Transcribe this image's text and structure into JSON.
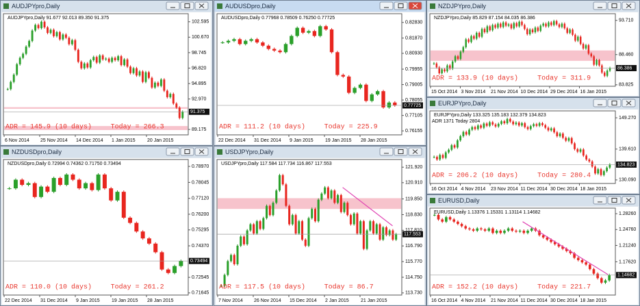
{
  "windows": [
    {
      "title": "AUDJPYpro,Daily",
      "info": "AUDJPYpro,Daily  91.677 92.013 89.350 91.375",
      "xlabels": [
        "6 Nov 2014",
        "25 Nov 2014",
        "14 Dec 2014",
        "1 Jan 2015",
        "20 Jan 2015"
      ],
      "yticks": [
        102.595,
        {
          "value": 100.67,
          "label": "100.670"
        },
        98.745,
        {
          "value": 96.82,
          "label": "96.820"
        },
        94.895,
        {
          "value": 92.97,
          "label": "92.970"
        },
        89.175
      ],
      "ylim": [
        88.5,
        103.6
      ],
      "last": 91.375,
      "bands": [
        [
          91.75,
          91.95
        ],
        [
          89.1,
          89.6
        ]
      ],
      "closes": [
        94.2,
        95.1,
        96.0,
        97.3,
        98.1,
        98.6,
        99.5,
        100.2,
        101.5,
        102.2,
        101.8,
        102.6,
        101.9,
        101.2,
        101.6,
        100.8,
        101.3,
        100.4,
        101.0,
        100.6,
        99.8,
        100.3,
        99.1,
        97.6,
        96.8,
        97.4,
        96.9,
        97.8,
        98.2,
        97.5,
        98.4,
        97.9,
        98.0,
        97.6,
        98.1,
        97.8,
        98.3,
        97.2,
        97.9,
        97.0,
        96.2,
        96.8,
        95.9,
        96.4,
        95.1,
        96.3,
        95.6,
        94.4,
        95.0,
        94.6,
        95.4,
        94.0,
        93.2,
        93.6,
        92.4,
        91.9,
        90.6,
        91.375
      ],
      "adr": "ADR = 145.9  (10 days)",
      "today": "Today = 266.3"
    },
    {
      "title": "AUDUSDpro,Daily",
      "info": "AUDUSDpro,Daily  0.77968 0.78509 0.76250 0.77725",
      "xlabels": [
        "22 Dec 2014",
        "31 Dec 2014",
        "9 Jan 2015",
        "19 Jan 2015",
        "28 Jan 2015"
      ],
      "yticks": [
        {
          "value": 0.8283,
          "label": "0.82830"
        },
        {
          "value": 0.8187,
          "label": "0.81870"
        },
        {
          "value": 0.8093,
          "label": "0.80930"
        },
        0.79955,
        0.79005,
        0.78055,
        0.77105,
        0.76155
      ],
      "ylim": [
        0.7591,
        0.8337
      ],
      "last": 0.77725,
      "closes": [
        0.816,
        0.817,
        0.818,
        0.815,
        0.817,
        0.818,
        0.816,
        0.814,
        0.812,
        0.811,
        0.81,
        0.815,
        0.82,
        0.825,
        0.822,
        0.823,
        0.82,
        0.826,
        0.824,
        0.81,
        0.796,
        0.795,
        0.785,
        0.788,
        0.79,
        0.78,
        0.784,
        0.786,
        0.776,
        0.779,
        0.77725
      ],
      "adr": "ADR = 111.2  (10 days)",
      "today": "Today = 225.9"
    },
    {
      "title": "NZDJPYpro,Daily",
      "info": "NZDJPYpro,Daily  85.829 87.154 84.035 86.386",
      "xlabels": [
        "15 Oct 2014",
        "3 Nov 2014",
        "21 Nov 2014",
        "10 Dec 2014",
        "29 Dec 2014",
        "16 Jan 2015"
      ],
      "yticks": [
        {
          "value": 93.71,
          "label": "93.710"
        },
        {
          "value": 88.46,
          "label": "88.460"
        },
        83.825
      ],
      "ylim": [
        83.6,
        94.74
      ],
      "last": 86.386,
      "bands": [
        [
          87.5,
          89.1
        ]
      ],
      "closes": [
        87.1,
        86.5,
        85.6,
        86.2,
        85.9,
        86.8,
        86.3,
        87.4,
        88.2,
        87.8,
        88.9,
        89.6,
        90.8,
        90.4,
        91.3,
        90.9,
        91.8,
        91.2,
        92.4,
        91.9,
        92.8,
        92.2,
        93.0,
        92.6,
        93.2,
        92.7,
        93.4,
        92.9,
        93.1,
        92.5,
        93.3,
        92.8,
        93.5,
        93.0,
        92.4,
        91.6,
        92.3,
        91.9,
        92.6,
        92.1,
        92.9,
        93.2,
        92.8,
        93.4,
        93.0,
        93.6,
        93.1,
        92.7,
        93.2,
        92.5,
        91.8,
        92.3,
        91.5,
        90.6,
        91.2,
        90.1,
        89.4,
        89.9,
        88.6,
        88.2,
        86.9,
        87.6,
        86.8,
        85.7,
        85.2,
        86.0,
        86.386
      ],
      "adr": "ADR = 133.9  (10 days)",
      "today": "Today = 311.9"
    },
    {
      "title": "NZDUSDpro,Daily",
      "info": "NZDUSDpro,Daily  0.72994 0.74362 0.71750 0.73494",
      "xlabels": [
        "22 Dec 2014",
        "31 Dec 2014",
        "9 Jan 2015",
        "19 Jan 2015",
        "28 Jan 2015"
      ],
      "yticks": [
        {
          "value": 0.7897,
          "label": "0.78970"
        },
        0.78045,
        {
          "value": 0.7712,
          "label": "0.77120"
        },
        {
          "value": 0.762,
          "label": "0.76200"
        },
        0.75295,
        {
          "value": 0.7437,
          "label": "0.74370"
        },
        0.72545,
        0.71645
      ],
      "ylim": [
        0.7152,
        0.7937
      ],
      "last": 0.73494,
      "closes": [
        0.777,
        0.782,
        0.779,
        0.78,
        0.772,
        0.778,
        0.775,
        0.783,
        0.779,
        0.785,
        0.782,
        0.777,
        0.78,
        0.776,
        0.785,
        0.777,
        0.77,
        0.775,
        0.76,
        0.757,
        0.752,
        0.748,
        0.745,
        0.74,
        0.73,
        0.728,
        0.732,
        0.73494
      ],
      "adr": "ADR = 110.0  (10 days)",
      "today": "Today = 261.2"
    },
    {
      "title": "USDJPYpro,Daily",
      "info": "USDJPYpro,Daily  117.584 117.734 116.867 117.553",
      "xlabels": [
        "7 Nov 2014",
        "26 Nov 2014",
        "15 Dec 2014",
        "2 Jan 2015",
        "21 Jan 2015"
      ],
      "yticks": [
        {
          "value": 121.92,
          "label": "121.920"
        },
        {
          "value": 120.91,
          "label": "120.910"
        },
        {
          "value": 119.85,
          "label": "119.850"
        },
        {
          "value": 118.83,
          "label": "118.830"
        },
        {
          "value": 117.81,
          "label": "117.810"
        },
        {
          "value": 116.79,
          "label": "116.790"
        },
        {
          "value": 115.77,
          "label": "115.770"
        },
        {
          "value": 114.75,
          "label": "114.750"
        },
        {
          "value": 113.73,
          "label": "113.730"
        }
      ],
      "ylim": [
        113.59,
        122.42
      ],
      "last": 117.553,
      "bands": [
        [
          119.2,
          119.9
        ]
      ],
      "trendline": [
        120.6,
        118.1
      ],
      "closes": [
        114.2,
        114.9,
        115.8,
        116.2,
        115.6,
        116.8,
        117.4,
        116.9,
        117.8,
        118.2,
        117.6,
        118.4,
        117.9,
        118.6,
        119.4,
        118.8,
        119.6,
        120.4,
        121.4,
        120.8,
        119.4,
        118.2,
        118.8,
        117.6,
        118.4,
        117.2,
        116.8,
        118.6,
        119.2,
        118.4,
        119.8,
        120.2,
        120.6,
        119.9,
        120.4,
        119.6,
        120.1,
        119.0,
        119.6,
        118.8,
        118.2,
        118.9,
        117.6,
        118.4,
        116.6,
        117.8,
        118.4,
        117.6,
        118.2,
        117.2,
        118.0,
        117.5,
        117.8,
        117.2,
        117.553
      ],
      "adr": "ADR = 117.5  (10 days)",
      "today": "Today = 86.7"
    },
    {
      "title": "EURJPYpro,Daily",
      "info": "EURJPYpro,Daily  133.325 135.183 132.379 134.823",
      "extra": "ADR 1371  Today 2804",
      "xlabels": [
        "16 Oct 2014",
        "4 Nov 2014",
        "23 Nov 2014",
        "11 Dec 2014",
        "30 Dec 2014",
        "18 Jan 2015"
      ],
      "yticks": [
        {
          "value": 149.27,
          "label": "149.270"
        },
        {
          "value": 139.61,
          "label": "139.610"
        },
        {
          "value": 130.09,
          "label": "130.090"
        }
      ],
      "ylim": [
        129.0,
        151.4
      ],
      "last": 134.823,
      "closes": [
        137.2,
        136.4,
        137.8,
        136.9,
        138.6,
        139.4,
        140.8,
        140.1,
        142.3,
        143.6,
        144.9,
        144.1,
        145.6,
        146.4,
        145.8,
        146.9,
        146.2,
        147.5,
        146.8,
        147.9,
        147.2,
        146.6,
        147.4,
        148.2,
        147.6,
        148.9,
        148.1,
        147.3,
        147.8,
        146.9,
        147.6,
        146.4,
        145.8,
        146.7,
        147.3,
        146.8,
        147.6,
        147.0,
        146.2,
        145.4,
        146.0,
        144.8,
        143.6,
        144.4,
        143.1,
        142.2,
        143.0,
        141.4,
        139.6,
        138.8,
        139.5,
        137.6,
        136.4,
        135.8,
        134.2,
        132.1,
        133.4,
        131.6,
        132.8,
        133.9,
        134.823
      ],
      "adr": "ADR = 206.2  (10 days)",
      "today": "Today = 280.4"
    },
    {
      "title": "EURUSD,Daily",
      "info": "EURUSD,Daily  1.13376 1.15331 1.13114 1.14682",
      "xlabels": [
        "16 Oct 2014",
        "4 Nov 2014",
        "21 Nov 2014",
        "11 Dec 2014",
        "30 Dec 2014",
        "18 Jan 2015"
      ],
      "yticks": [
        {
          "value": 1.2826,
          "label": "1.28260"
        },
        {
          "value": 1.2476,
          "label": "1.24760"
        },
        {
          "value": 1.2124,
          "label": "1.21240"
        },
        {
          "value": 1.1762,
          "label": "1.17620"
        }
      ],
      "ylim": [
        1.1026,
        1.295
      ],
      "last": 1.14682,
      "trendline": [
        1.265,
        1.148
      ],
      "closes": [
        1.28,
        1.27,
        1.265,
        1.275,
        1.27,
        1.265,
        1.26,
        1.255,
        1.25,
        1.248,
        1.245,
        1.25,
        1.248,
        1.245,
        1.25,
        1.24,
        1.245,
        1.24,
        1.245,
        1.25,
        1.245,
        1.243,
        1.245,
        1.24,
        1.245,
        1.25,
        1.245,
        1.235,
        1.23,
        1.225,
        1.22,
        1.215,
        1.21,
        1.205,
        1.2,
        1.195,
        1.185,
        1.18,
        1.175,
        1.17,
        1.16,
        1.15,
        1.14,
        1.13,
        1.135,
        1.14682
      ],
      "adr": "ADR = 152.2  (10 days)",
      "today": "Today = 221.7"
    }
  ]
}
